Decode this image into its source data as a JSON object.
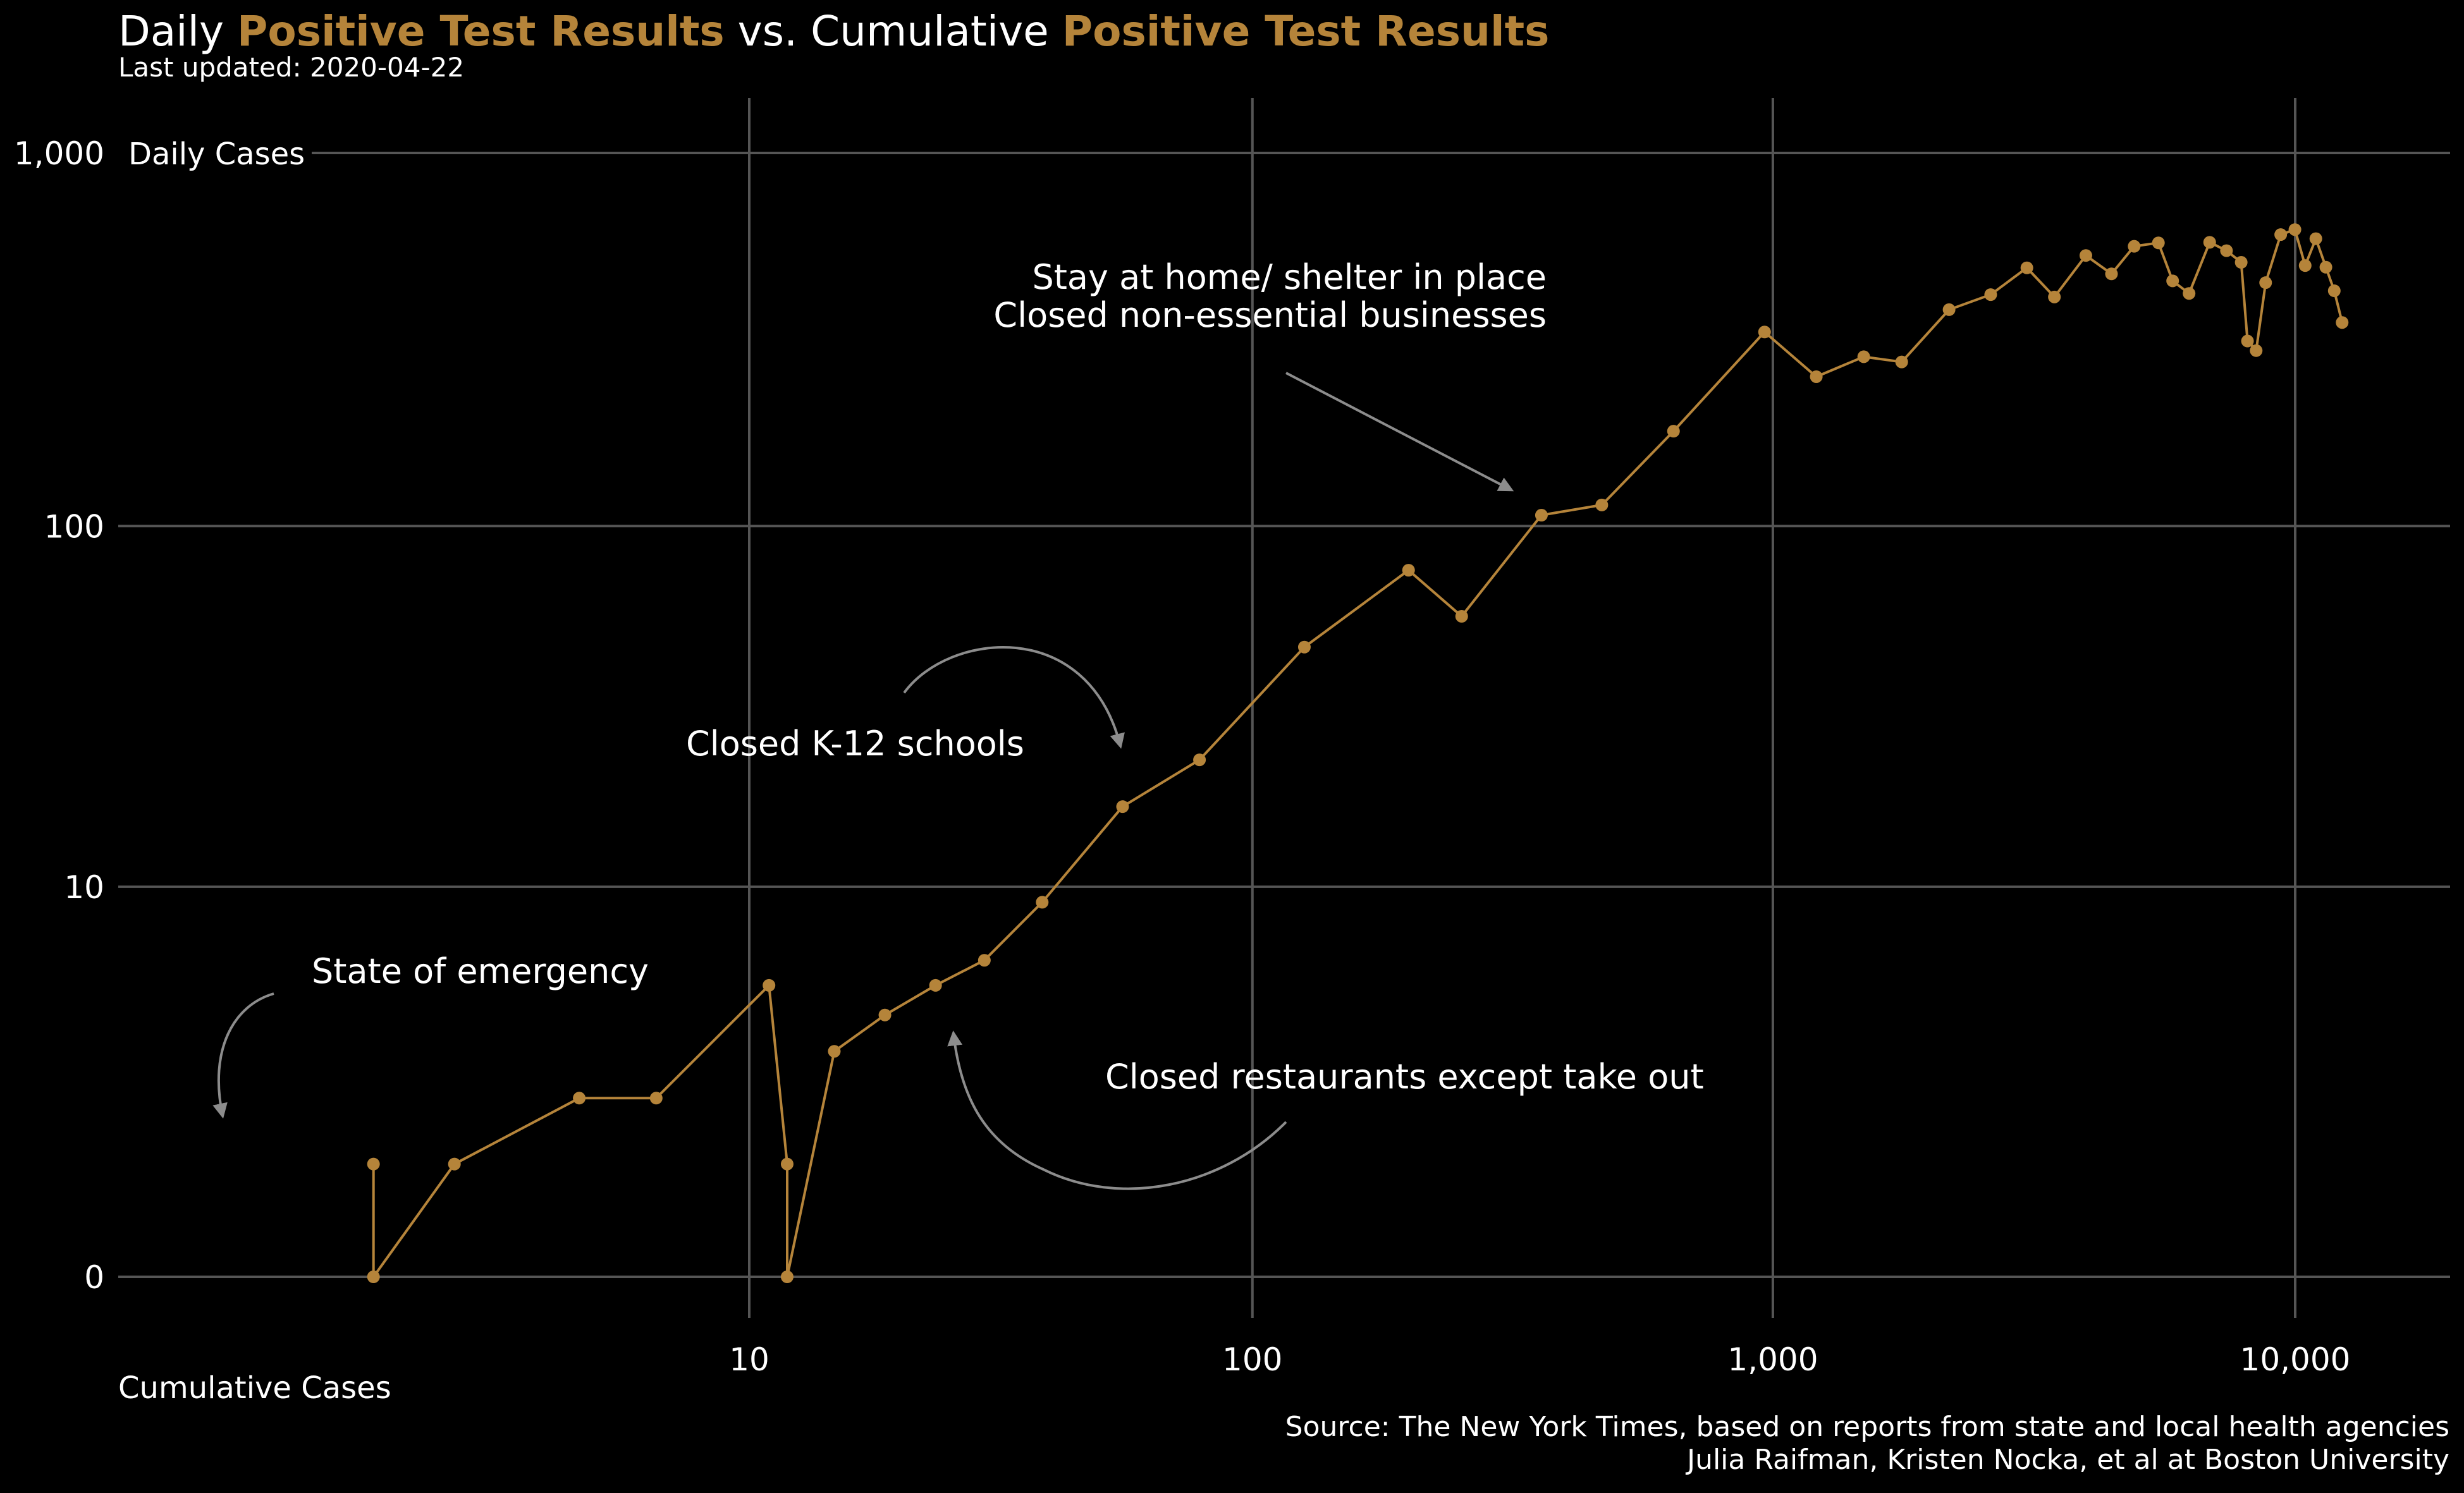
{
  "title": {
    "parts": [
      {
        "text": "Daily ",
        "highlight": false
      },
      {
        "text": "Positive Test Results",
        "highlight": true
      },
      {
        "text": " vs. Cumulative ",
        "highlight": false
      },
      {
        "text": "Positive Test Results",
        "highlight": true
      }
    ]
  },
  "subtitle": "Last updated: 2020-04-22",
  "source": {
    "line1": "Source: The New York Times, based on reports from state and local health agencies",
    "line2": "Julia Raifman,  Kristen Nocka, et al at Boston University"
  },
  "colors": {
    "background": "#000000",
    "series": "#b5843a",
    "grid": "#555555",
    "text": "#ffffff",
    "annotation_arrow": "#8c8c8c"
  },
  "chart_data": {
    "type": "line",
    "x_scale": "log",
    "y_scale": "log",
    "xlabel": "Cumulative Cases",
    "ylabel": "Daily Cases",
    "x_ticks": [
      {
        "value": 10,
        "label": "10"
      },
      {
        "value": 100,
        "label": "100"
      },
      {
        "value": 1000,
        "label": "1,000"
      },
      {
        "value": 10000,
        "label": "10,000"
      }
    ],
    "y_ticks": [
      {
        "value": 0,
        "label": "0"
      },
      {
        "value": 10,
        "label": "10"
      },
      {
        "value": 100,
        "label": "100"
      },
      {
        "value": 1000,
        "label": "1,000"
      }
    ],
    "grid": true,
    "legend": "none",
    "series": [
      {
        "points": [
          [
            1.1,
            1
          ],
          [
            1.1,
            0
          ],
          [
            2,
            1
          ],
          [
            4.2,
            2
          ],
          [
            6.3,
            2
          ],
          [
            11,
            5
          ],
          [
            12,
            1
          ],
          [
            12,
            0
          ],
          [
            15,
            3
          ],
          [
            19,
            4
          ],
          [
            24,
            5
          ],
          [
            30,
            6
          ],
          [
            39,
            9
          ],
          [
            56,
            17
          ],
          [
            79,
            23
          ],
          [
            126,
            47
          ],
          [
            200,
            76
          ],
          [
            253,
            57
          ],
          [
            360,
            107
          ],
          [
            470,
            114
          ],
          [
            645,
            180
          ],
          [
            964,
            332
          ],
          [
            1211,
            252
          ],
          [
            1493,
            285
          ],
          [
            1765,
            276
          ],
          [
            2175,
            381
          ],
          [
            2613,
            418
          ],
          [
            3065,
            493
          ],
          [
            3460,
            412
          ],
          [
            3975,
            532
          ],
          [
            4450,
            475
          ],
          [
            4918,
            563
          ],
          [
            5473,
            575
          ],
          [
            5827,
            455
          ],
          [
            6265,
            421
          ],
          [
            6860,
            577
          ],
          [
            7388,
            548
          ],
          [
            7883,
            510
          ],
          [
            8104,
            314
          ],
          [
            8420,
            296
          ],
          [
            8779,
            450
          ],
          [
            9382,
            605
          ],
          [
            9989,
            624
          ],
          [
            10450,
            500
          ],
          [
            10954,
            590
          ],
          [
            11450,
            495
          ],
          [
            11880,
            428
          ],
          [
            12300,
            352
          ]
        ]
      }
    ],
    "annotations": [
      {
        "text": "State of emergency",
        "x": 1.1,
        "y": 1
      },
      {
        "text": "Closed K-12 schools",
        "x": 56,
        "y": 17
      },
      {
        "text": "Closed restaurants except take out",
        "x": 24,
        "y": 5
      },
      {
        "lines": [
          "Stay at home/ shelter in place",
          "Closed non-essential businesses"
        ],
        "x": 360,
        "y": 107
      }
    ]
  }
}
